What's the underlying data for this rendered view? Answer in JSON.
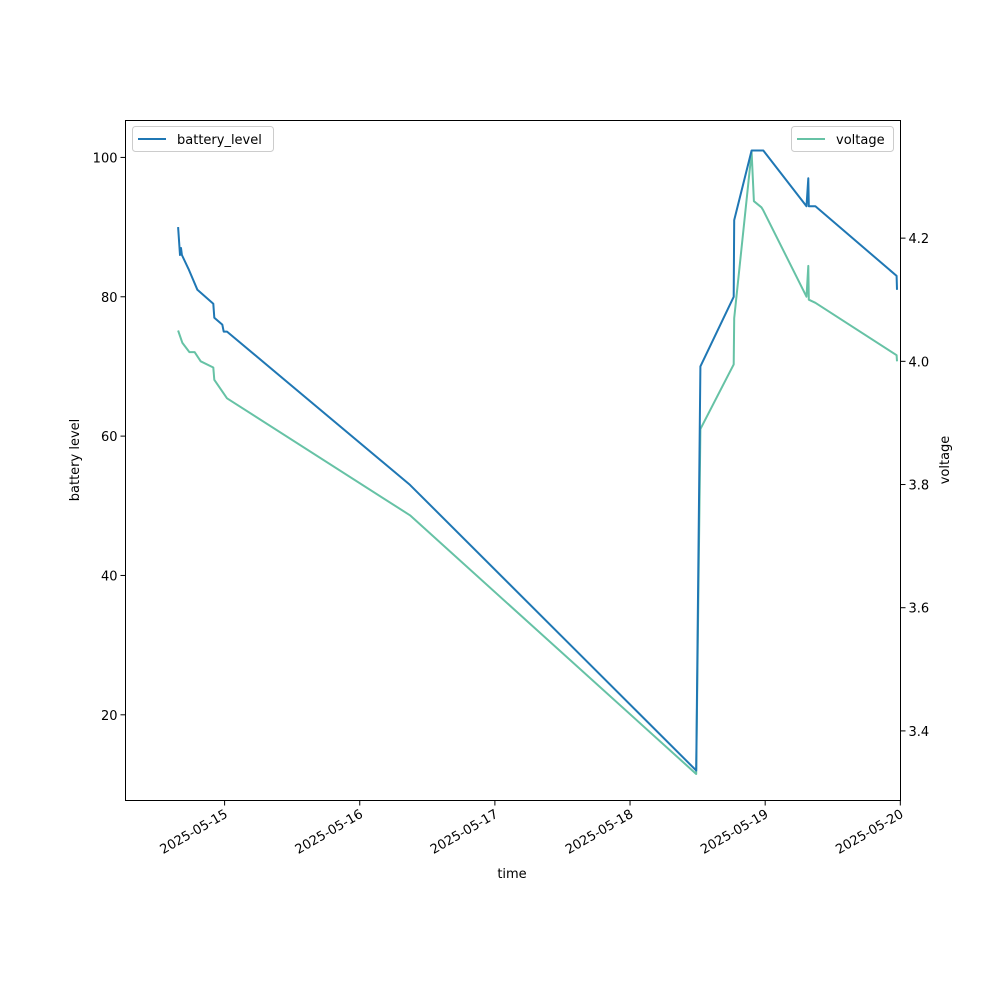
{
  "chart_data": {
    "type": "line",
    "title": "",
    "xlabel": "time",
    "ylabel": "battery level",
    "y2label": "voltage",
    "x_ticks": [
      "2025-05-15",
      "2025-05-16",
      "2025-05-17",
      "2025-05-18",
      "2025-05-19",
      "2025-05-20"
    ],
    "y_ticks": [
      "20",
      "40",
      "60",
      "80",
      "100"
    ],
    "y2_ticks": [
      "3.4",
      "3.6",
      "3.8",
      "4.0",
      "4.2"
    ],
    "xlim": [
      "2025-05-14 06:24",
      "2025-05-20 00:02"
    ],
    "ylim": [
      7.7,
      105.3
    ],
    "y2lim": [
      3.287,
      4.391
    ],
    "grid": false,
    "legend_left": {
      "label": "battery_level",
      "placement": "upper left"
    },
    "legend_right": {
      "label": "voltage",
      "placement": "upper right"
    },
    "series": [
      {
        "name": "battery_level",
        "axis": "left",
        "color": "#1f77b4",
        "points": [
          [
            "2025-05-14 15:45",
            90
          ],
          [
            "2025-05-14 16:05",
            86
          ],
          [
            "2025-05-14 16:15",
            87
          ],
          [
            "2025-05-14 16:25",
            86
          ],
          [
            "2025-05-14 17:35",
            84
          ],
          [
            "2025-05-14 19:10",
            81
          ],
          [
            "2025-05-14 22:00",
            79
          ],
          [
            "2025-05-14 22:10",
            77
          ],
          [
            "2025-05-14 23:35",
            76
          ],
          [
            "2025-05-14 23:50",
            75
          ],
          [
            "2025-05-15 00:25",
            75
          ],
          [
            "2025-05-16 08:55",
            53
          ],
          [
            "2025-05-18 11:45",
            12
          ],
          [
            "2025-05-18 12:30",
            70
          ],
          [
            "2025-05-18 18:25",
            80
          ],
          [
            "2025-05-18 18:30",
            91
          ],
          [
            "2025-05-18 21:35",
            101
          ],
          [
            "2025-05-18 23:40",
            101
          ],
          [
            "2025-05-19 07:20",
            93
          ],
          [
            "2025-05-19 07:40",
            97
          ],
          [
            "2025-05-19 07:45",
            93
          ],
          [
            "2025-05-19 08:55",
            93
          ],
          [
            "2025-05-19 23:20",
            83
          ],
          [
            "2025-05-19 23:25",
            81
          ]
        ]
      },
      {
        "name": "voltage",
        "axis": "right",
        "color": "#66c2a5",
        "points": [
          [
            "2025-05-14 15:45",
            4.05
          ],
          [
            "2025-05-14 16:30",
            4.03
          ],
          [
            "2025-05-14 17:45",
            4.015
          ],
          [
            "2025-05-14 18:40",
            4.015
          ],
          [
            "2025-05-14 19:45",
            4.0
          ],
          [
            "2025-05-14 22:00",
            3.99
          ],
          [
            "2025-05-14 22:10",
            3.97
          ],
          [
            "2025-05-15 00:25",
            3.94
          ],
          [
            "2025-05-16 08:55",
            3.75
          ],
          [
            "2025-05-18 11:45",
            3.33
          ],
          [
            "2025-05-18 12:30",
            3.89
          ],
          [
            "2025-05-18 18:25",
            3.995
          ],
          [
            "2025-05-18 18:30",
            4.07
          ],
          [
            "2025-05-18 21:35",
            4.34
          ],
          [
            "2025-05-18 22:00",
            4.26
          ],
          [
            "2025-05-18 23:20",
            4.25
          ],
          [
            "2025-05-18 23:40",
            4.245
          ],
          [
            "2025-05-19 07:20",
            4.105
          ],
          [
            "2025-05-19 07:40",
            4.155
          ],
          [
            "2025-05-19 07:45",
            4.1
          ],
          [
            "2025-05-19 08:55",
            4.095
          ],
          [
            "2025-05-19 23:20",
            4.01
          ],
          [
            "2025-05-19 23:25",
            4.0
          ]
        ]
      }
    ]
  }
}
